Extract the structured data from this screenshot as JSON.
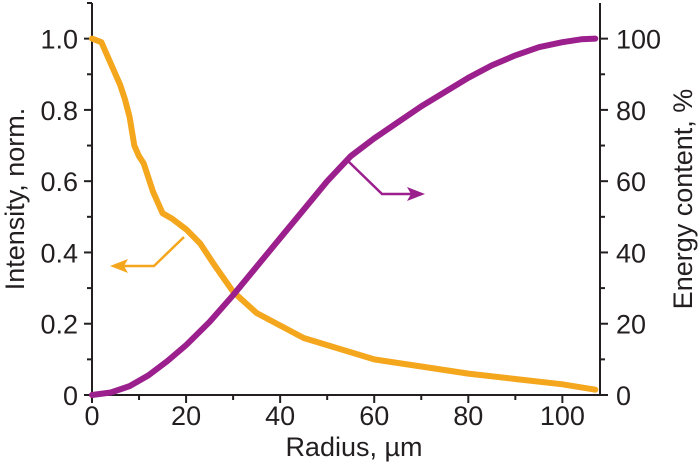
{
  "chart_data": {
    "type": "line",
    "xlabel": "Radius, µm",
    "ylabel_left": "Intensity, norm.",
    "ylabel_right": "Energy content, %",
    "xlim": [
      0,
      108
    ],
    "ylim_left": [
      0,
      1.1
    ],
    "ylim_right": [
      0,
      110
    ],
    "x_ticks": [
      "0",
      "20",
      "40",
      "60",
      "80",
      "100"
    ],
    "y_ticks_left": [
      "0",
      "0.2",
      "0.4",
      "0.6",
      "0.8",
      "1.0"
    ],
    "y_ticks_right": [
      "0",
      "20",
      "40",
      "60",
      "80",
      "100"
    ],
    "grid": false,
    "colors": {
      "intensity": "#f4a61d",
      "energy": "#9b1f8c",
      "axis": "#231f20"
    },
    "series": [
      {
        "axis": "left",
        "x": [
          0,
          2,
          3,
          5,
          6,
          7,
          8,
          9,
          10,
          11,
          13,
          15,
          17,
          20,
          23,
          26,
          30,
          35,
          40,
          45,
          50,
          55,
          60,
          70,
          80,
          90,
          100,
          107
        ],
        "y": [
          1.0,
          0.99,
          0.96,
          0.9,
          0.87,
          0.83,
          0.78,
          0.7,
          0.67,
          0.65,
          0.57,
          0.51,
          0.495,
          0.465,
          0.425,
          0.365,
          0.29,
          0.23,
          0.195,
          0.16,
          0.14,
          0.12,
          0.1,
          0.08,
          0.06,
          0.045,
          0.03,
          0.015
        ]
      },
      {
        "axis": "right",
        "x": [
          0,
          4,
          8,
          12,
          16,
          20,
          25,
          30,
          35,
          40,
          45,
          50,
          55,
          60,
          65,
          70,
          75,
          80,
          85,
          90,
          95,
          100,
          104,
          107
        ],
        "y": [
          0,
          0.7,
          2.5,
          5.5,
          9.5,
          14,
          20.5,
          28,
          36,
          44,
          52,
          60,
          67,
          72,
          76.5,
          81,
          85,
          89,
          92.5,
          95.3,
          97.6,
          99,
          99.8,
          100
        ]
      }
    ]
  }
}
